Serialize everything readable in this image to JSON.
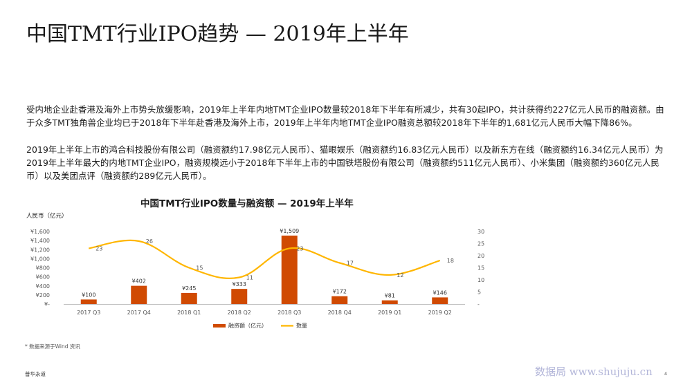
{
  "page": {
    "title": "中国TMT行业IPO趋势 — 2019年上半年",
    "paragraph1": "受内地企业赴香港及海外上市势头放缓影响，2019年上半年内地TMT企业IPO数量较2018年下半年有所减少，共有30起IPO，共计获得约227亿元人民币的融资额。由于众多TMT独角兽企业均已于2018年下半年赴香港及海外上市，2019年上半年内地TMT企业IPO融资总额较2018年下半年的1,681亿元人民币大幅下降86%。",
    "paragraph2": "2019年上半年上市的鸿合科技股份有限公司（融资额约17.98亿元人民币）、猫眼娱乐（融资额约16.83亿元人民币）以及新东方在线（融资额约16.34亿元人民币）为 2019年上半年最大的内地TMT企业IPO，融资规模远小于2018年下半年上市的中国铁塔股份有限公司（融资额约511亿元人民币）、小米集团（融资额约360亿元人民币）以及美团点评（融资额约289亿元人民币）。",
    "footnote": "* 数据来源于Wind 资讯",
    "brand": "普华永道",
    "watermark": "数据局  www.shujuju.cn",
    "page_number": "4"
  },
  "chart_data": {
    "type": "bar",
    "title": "中国TMT行业IPO数量与融资额 — 2019年上半年",
    "ylabel": "人民币（亿元）",
    "categories": [
      "2017 Q3",
      "2017 Q4",
      "2018 Q1",
      "2018 Q2",
      "2018 Q3",
      "2018 Q4",
      "2019 Q1",
      "2019 Q2"
    ],
    "series": [
      {
        "name": "融资额（亿元）",
        "type": "bar",
        "axis": "left",
        "color": "#d04a02",
        "values": [
          100,
          402,
          245,
          333,
          1509,
          172,
          81,
          146
        ],
        "labels": [
          "¥100",
          "¥402",
          "¥245",
          "¥333",
          "¥1,509",
          "¥172",
          "¥81",
          "¥146"
        ]
      },
      {
        "name": "数量",
        "type": "line",
        "axis": "right",
        "color": "#ffb600",
        "values": [
          23,
          26,
          15,
          11,
          23,
          17,
          12,
          18
        ],
        "labels": [
          "23",
          "26",
          "15",
          "11",
          "23",
          "17",
          "12",
          "18"
        ]
      }
    ],
    "left_axis": {
      "range": [
        0,
        1600
      ],
      "ticks": [
        0,
        200,
        400,
        600,
        800,
        1000,
        1200,
        1400,
        1600
      ],
      "tick_labels": [
        "¥-",
        "¥200",
        "¥400",
        "¥600",
        "¥800",
        "¥1,000",
        "¥1,200",
        "¥1,400",
        "¥1,600"
      ]
    },
    "right_axis": {
      "range": [
        0,
        30
      ],
      "ticks": [
        0,
        5,
        10,
        15,
        20,
        25,
        30
      ],
      "tick_labels": [
        "-",
        "5",
        "10",
        "15",
        "20",
        "25",
        "30"
      ]
    },
    "grid": false,
    "legend_position": "bottom"
  }
}
